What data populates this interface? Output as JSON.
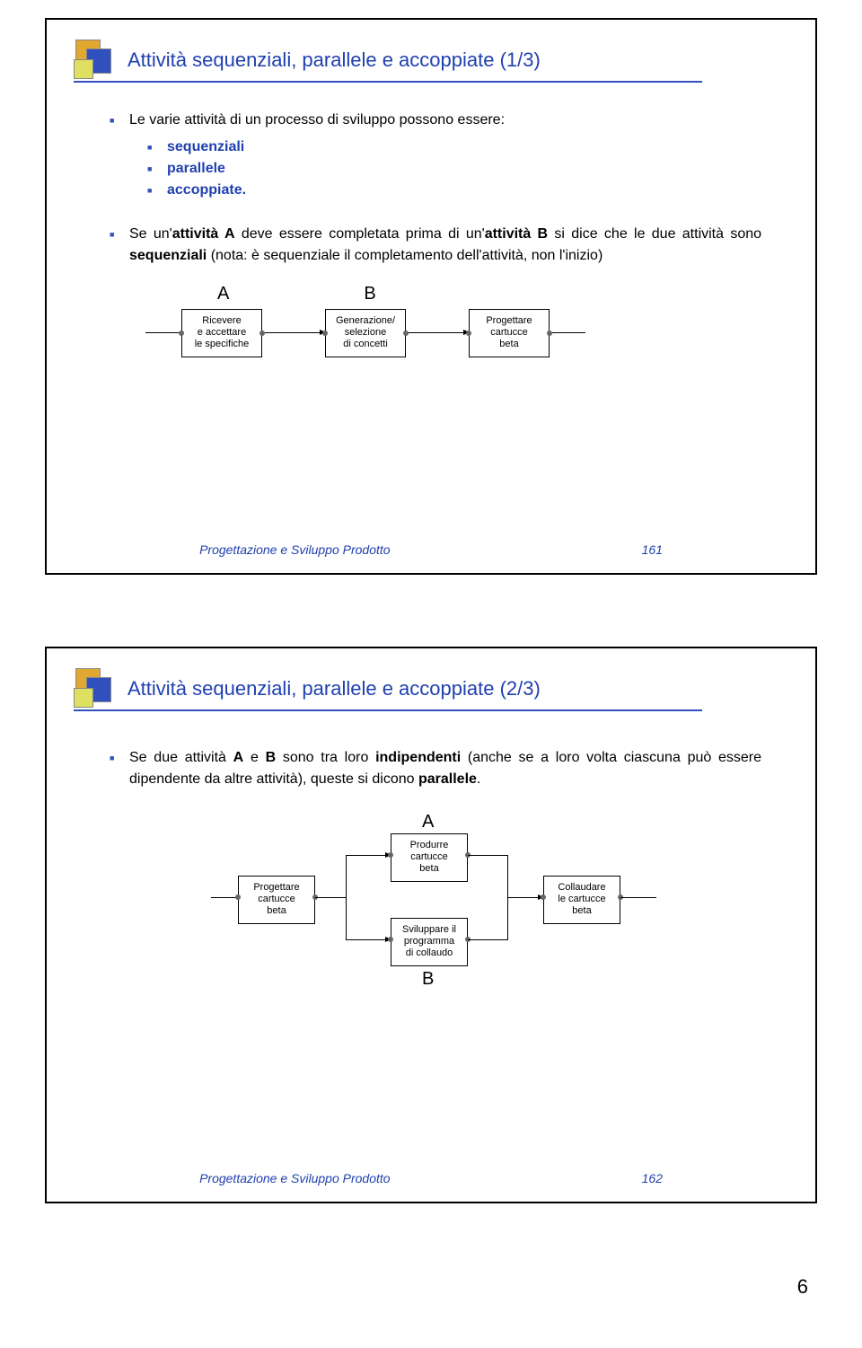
{
  "slide1": {
    "title": "Attività sequenziali, parallele e accoppiate (1/3)",
    "intro": "Le varie attività di un processo di sviluppo possono essere:",
    "types": [
      "sequenziali",
      "parallele",
      "accoppiate."
    ],
    "para_pre": "Se un'",
    "para_bold1": "attività A",
    "para_mid1": " deve essere completata prima di un'",
    "para_bold2": "attività B",
    "para_mid2": " si dice che le due attività sono ",
    "para_bold3": "sequenziali",
    "para_tail": " (nota: è sequenziale il completamento dell'attività, non l'inizio)",
    "labelA": "A",
    "labelB": "B",
    "diagram": {
      "box1": "Ricevere\ne accettare\nle specifiche",
      "box2": "Generazione/\nselezione\ndi concetti",
      "box3": "Progettare\ncartucce\nbeta"
    },
    "footer_text": "Progettazione e Sviluppo Prodotto",
    "footer_num": "161",
    "colors": {
      "title": "#2040b0",
      "bullet": "#3050c0"
    }
  },
  "slide2": {
    "title": "Attività sequenziali, parallele e accoppiate (2/3)",
    "para_pre": "Se due attività ",
    "para_bold1": "A",
    "para_mid1": " e ",
    "para_bold2": "B",
    "para_mid2": " sono tra loro ",
    "para_bold3": "indipendenti",
    "para_mid3": " (anche se a loro volta ciascuna può essere dipendente da altre attività), queste si dicono ",
    "para_bold4": "parallele",
    "para_tail": ".",
    "labelA": "A",
    "labelB": "B",
    "diagram": {
      "left": "Progettare\ncartucce\nbeta",
      "topmid": "Produrre\ncartucce\nbeta",
      "botmid": "Sviluppare il\nprogramma\ndi collaudo",
      "right": "Collaudare\nle cartucce\nbeta"
    },
    "footer_text": "Progettazione e Sviluppo Prodotto",
    "footer_num": "162"
  },
  "page_number": "6"
}
